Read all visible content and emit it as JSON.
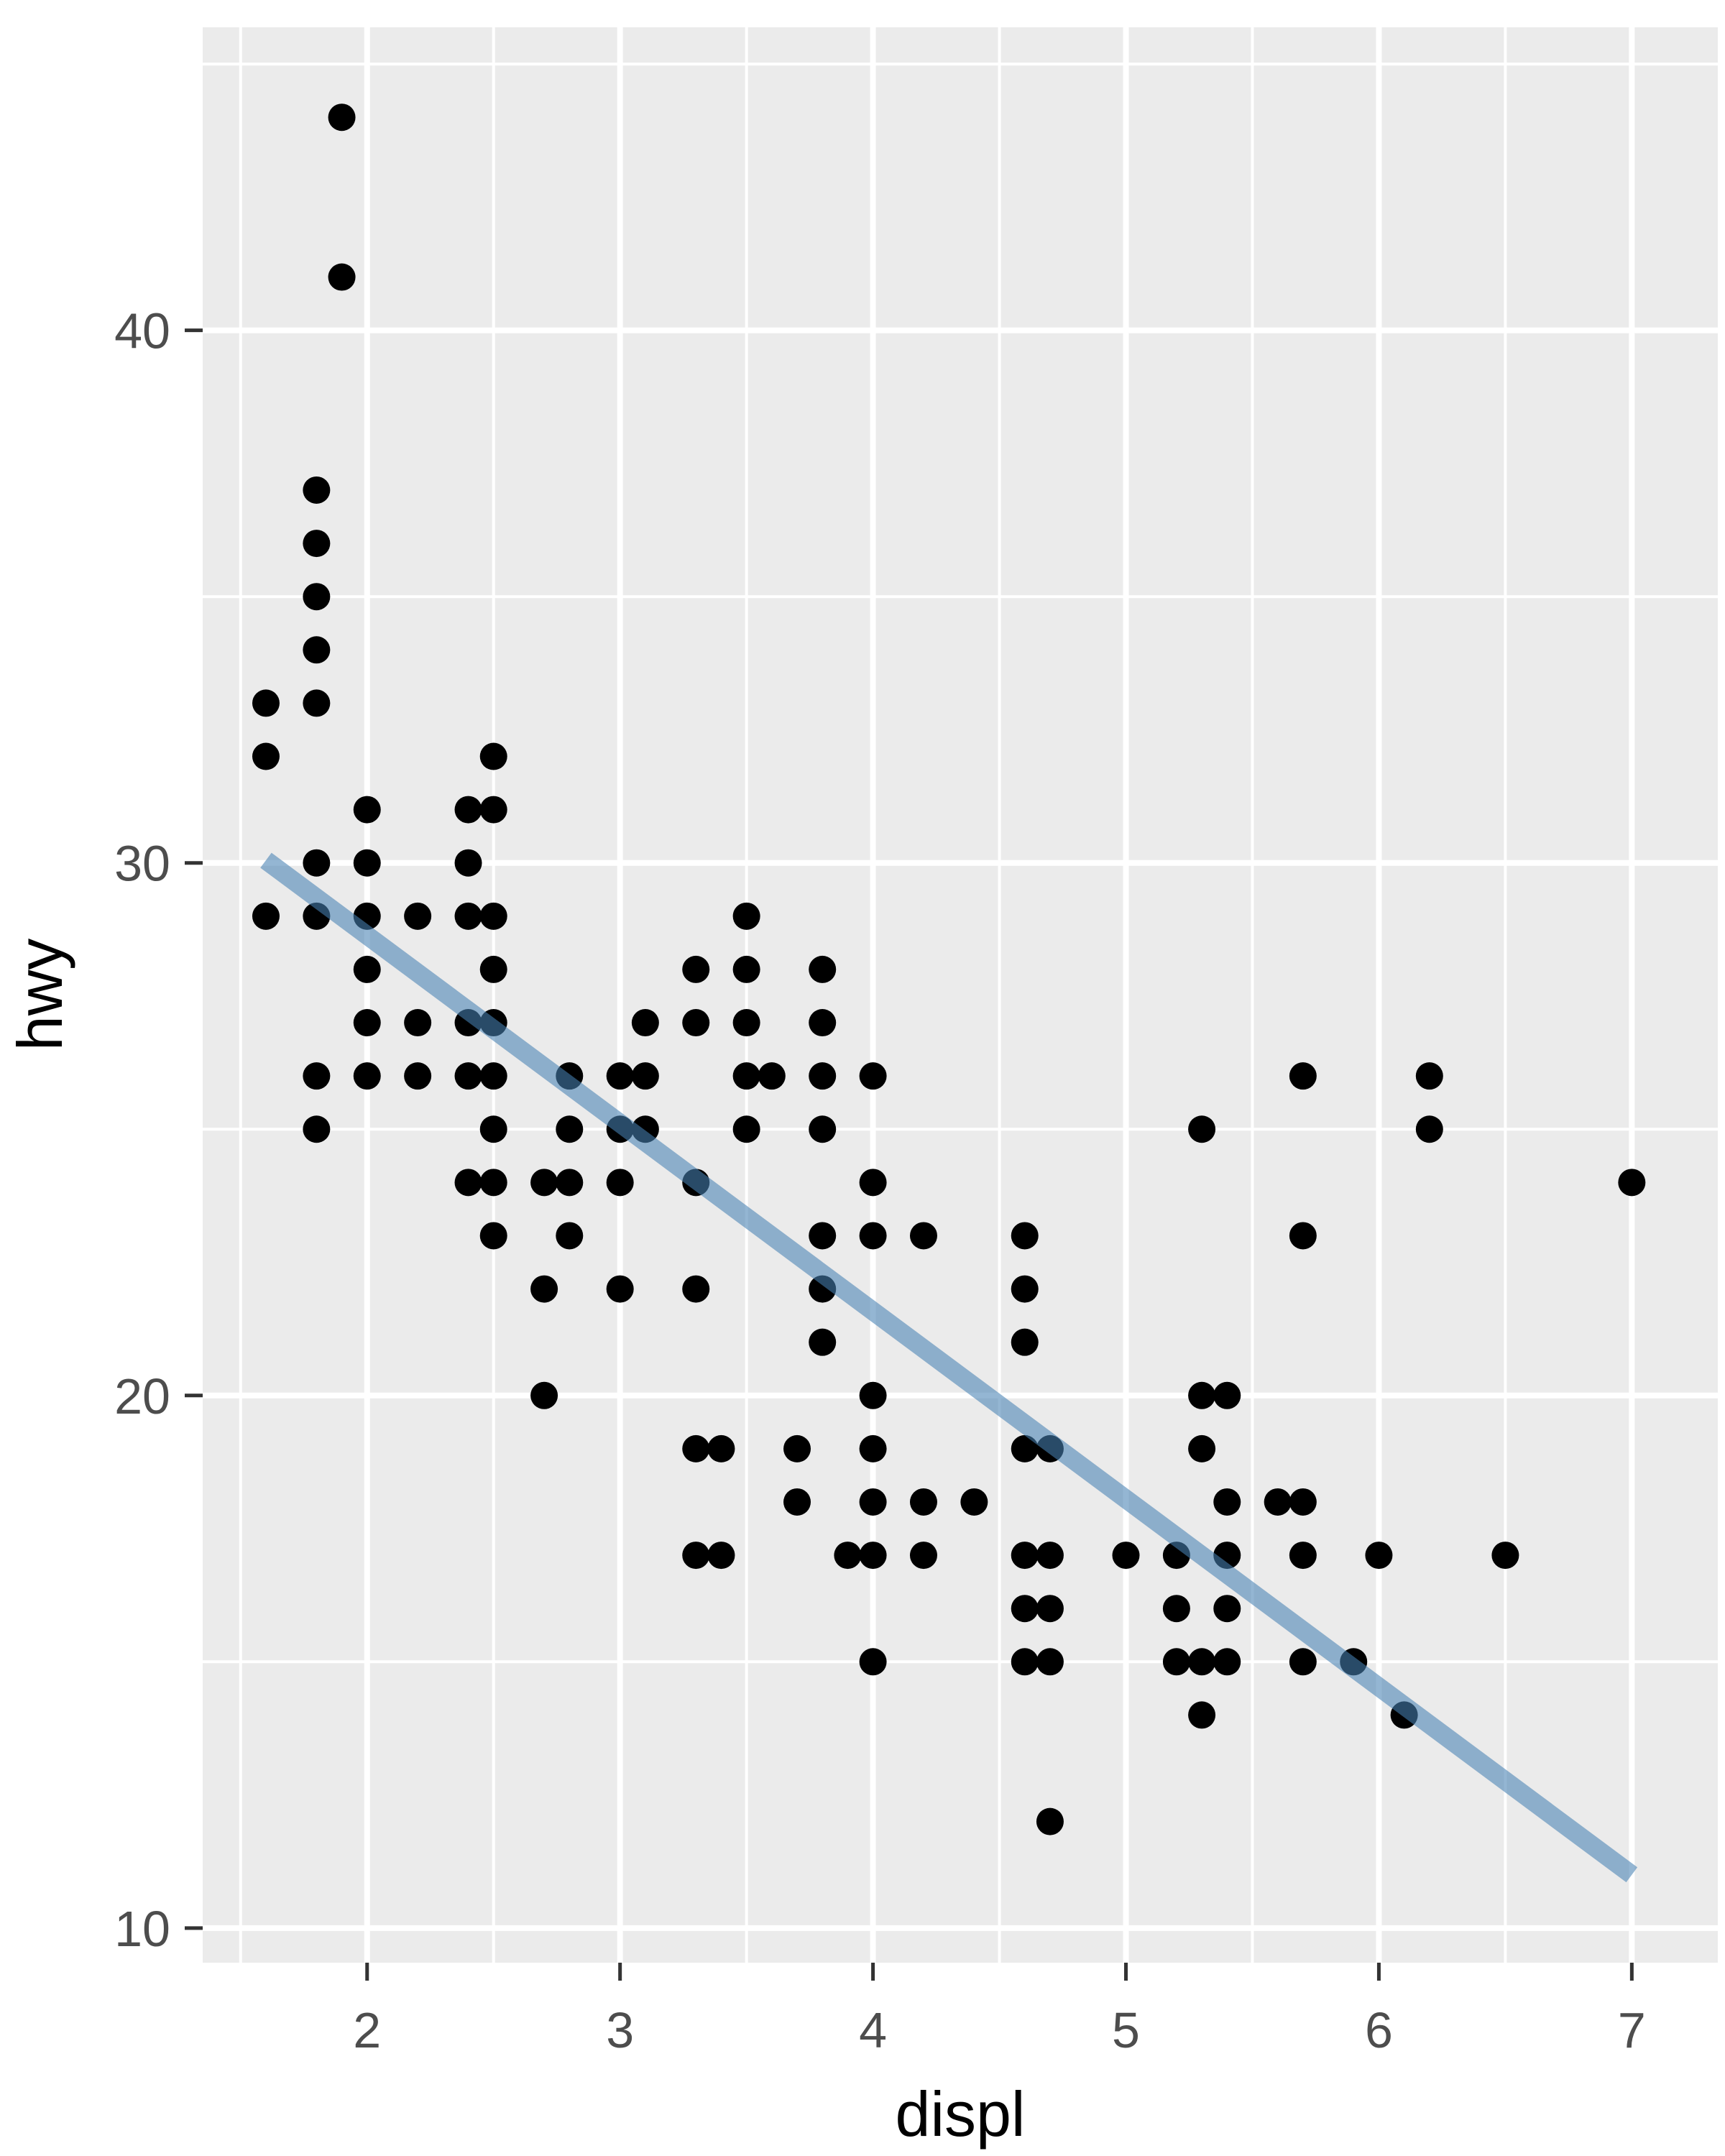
{
  "chart_data": {
    "type": "scatter",
    "title": "",
    "xlabel": "displ",
    "ylabel": "hwy",
    "legend": "none",
    "grid": "on",
    "x_ticks": [
      2,
      3,
      4,
      5,
      6,
      7
    ],
    "y_ticks": [
      10,
      20,
      30,
      40
    ],
    "x_minor_ticks": [
      1.5,
      2.5,
      3.5,
      4.5,
      5.5,
      6.5
    ],
    "y_minor_ticks": [
      15,
      25,
      35,
      45
    ],
    "xlim": [
      1.35,
      7.34
    ],
    "ylim": [
      9.35,
      45.69
    ],
    "points": [
      [
        1.9,
        44
      ],
      [
        1.9,
        41
      ],
      [
        1.8,
        37
      ],
      [
        1.8,
        36
      ],
      [
        1.8,
        35
      ],
      [
        1.8,
        34
      ],
      [
        1.6,
        33
      ],
      [
        1.8,
        33
      ],
      [
        1.6,
        32
      ],
      [
        2.5,
        32
      ],
      [
        2.0,
        31
      ],
      [
        2.4,
        31
      ],
      [
        2.5,
        31
      ],
      [
        1.8,
        30
      ],
      [
        2.0,
        30
      ],
      [
        2.4,
        30
      ],
      [
        1.6,
        29
      ],
      [
        1.8,
        29
      ],
      [
        2.0,
        29
      ],
      [
        2.2,
        29
      ],
      [
        2.4,
        29
      ],
      [
        2.5,
        29
      ],
      [
        3.5,
        29
      ],
      [
        2.0,
        28
      ],
      [
        2.5,
        28
      ],
      [
        3.3,
        28
      ],
      [
        3.5,
        28
      ],
      [
        3.8,
        28
      ],
      [
        2.0,
        27
      ],
      [
        2.2,
        27
      ],
      [
        2.4,
        27
      ],
      [
        2.5,
        27
      ],
      [
        3.1,
        27
      ],
      [
        3.3,
        27
      ],
      [
        3.5,
        27
      ],
      [
        3.8,
        27
      ],
      [
        1.8,
        26
      ],
      [
        2.0,
        26
      ],
      [
        2.2,
        26
      ],
      [
        2.4,
        26
      ],
      [
        2.5,
        26
      ],
      [
        2.8,
        26
      ],
      [
        3.0,
        26
      ],
      [
        3.1,
        26
      ],
      [
        3.5,
        26
      ],
      [
        3.6,
        26
      ],
      [
        3.8,
        26
      ],
      [
        4.0,
        26
      ],
      [
        5.7,
        26
      ],
      [
        6.2,
        26
      ],
      [
        1.8,
        25
      ],
      [
        2.5,
        25
      ],
      [
        2.8,
        25
      ],
      [
        3.0,
        25
      ],
      [
        3.1,
        25
      ],
      [
        3.5,
        25
      ],
      [
        3.8,
        25
      ],
      [
        5.3,
        25
      ],
      [
        6.2,
        25
      ],
      [
        2.4,
        24
      ],
      [
        2.5,
        24
      ],
      [
        2.7,
        24
      ],
      [
        2.8,
        24
      ],
      [
        3.0,
        24
      ],
      [
        3.3,
        24
      ],
      [
        4.0,
        24
      ],
      [
        7.0,
        24
      ],
      [
        2.5,
        23
      ],
      [
        2.8,
        23
      ],
      [
        3.8,
        23
      ],
      [
        4.0,
        23
      ],
      [
        4.2,
        23
      ],
      [
        4.6,
        23
      ],
      [
        5.7,
        23
      ],
      [
        2.7,
        22
      ],
      [
        3.0,
        22
      ],
      [
        3.3,
        22
      ],
      [
        3.8,
        22
      ],
      [
        4.6,
        22
      ],
      [
        3.8,
        21
      ],
      [
        4.6,
        21
      ],
      [
        2.7,
        20
      ],
      [
        4.0,
        20
      ],
      [
        5.3,
        20
      ],
      [
        5.4,
        20
      ],
      [
        3.3,
        19
      ],
      [
        3.4,
        19
      ],
      [
        3.7,
        19
      ],
      [
        4.0,
        19
      ],
      [
        4.6,
        19
      ],
      [
        4.7,
        19
      ],
      [
        5.3,
        19
      ],
      [
        3.7,
        18
      ],
      [
        4.0,
        18
      ],
      [
        4.2,
        18
      ],
      [
        4.4,
        18
      ],
      [
        5.4,
        18
      ],
      [
        5.6,
        18
      ],
      [
        5.7,
        18
      ],
      [
        3.3,
        17
      ],
      [
        3.4,
        17
      ],
      [
        3.9,
        17
      ],
      [
        4.0,
        17
      ],
      [
        4.2,
        17
      ],
      [
        4.6,
        17
      ],
      [
        4.7,
        17
      ],
      [
        5.0,
        17
      ],
      [
        5.2,
        17
      ],
      [
        5.4,
        17
      ],
      [
        5.7,
        17
      ],
      [
        6.0,
        17
      ],
      [
        6.5,
        17
      ],
      [
        4.6,
        16
      ],
      [
        4.7,
        16
      ],
      [
        5.2,
        16
      ],
      [
        5.4,
        16
      ],
      [
        4.0,
        15
      ],
      [
        4.6,
        15
      ],
      [
        4.7,
        15
      ],
      [
        5.2,
        15
      ],
      [
        5.3,
        15
      ],
      [
        5.4,
        15
      ],
      [
        5.7,
        15
      ],
      [
        5.9,
        15
      ],
      [
        5.3,
        14
      ],
      [
        6.1,
        14
      ],
      [
        4.7,
        12
      ]
    ],
    "smooth_line": {
      "x1": 1.6,
      "y1": 30.05,
      "x2": 7.0,
      "y2": 11.0
    },
    "colors": {
      "panel_background": "#EBEBEB",
      "gridline": "#FFFFFF",
      "point": "#000000",
      "smooth_line": "rgba(70,130,180,0.58)",
      "tick_label": "#4D4D4D",
      "axis_title": "#000000",
      "tick_mark": "#333333",
      "page_background": "#FFFFFF"
    }
  }
}
